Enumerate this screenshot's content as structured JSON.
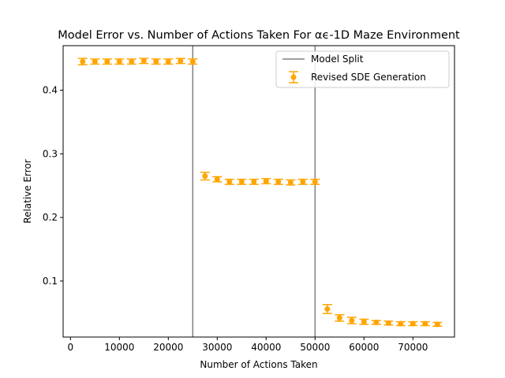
{
  "chart_data": {
    "type": "scatter",
    "title": "Model Error vs. Number of Actions Taken For αϵ-1D Maze Environment",
    "xlabel": "Number of Actions Taken",
    "ylabel": "Relative Error",
    "xlim": [
      -1500,
      78500
    ],
    "ylim": [
      0.012,
      0.47
    ],
    "xticks": [
      0,
      10000,
      20000,
      30000,
      40000,
      50000,
      60000,
      70000
    ],
    "xtick_labels": [
      "0",
      "10000",
      "20000",
      "30000",
      "40000",
      "50000",
      "60000",
      "70000"
    ],
    "yticks": [
      0.1,
      0.2,
      0.3,
      0.4
    ],
    "ytick_labels": [
      "0.1",
      "0.2",
      "0.3",
      "0.4"
    ],
    "grid": false,
    "legend_position": "top-right",
    "vlines": {
      "name": "Model Split",
      "x": [
        25000,
        50000
      ],
      "color": "#808080"
    },
    "series": [
      {
        "name": "Revised SDE Generation",
        "color": "#ffa500",
        "points": [
          {
            "x": 2500,
            "y": 0.445,
            "err": 0.005
          },
          {
            "x": 5000,
            "y": 0.445,
            "err": 0.004
          },
          {
            "x": 7500,
            "y": 0.445,
            "err": 0.004
          },
          {
            "x": 10000,
            "y": 0.445,
            "err": 0.004
          },
          {
            "x": 12500,
            "y": 0.445,
            "err": 0.004
          },
          {
            "x": 15000,
            "y": 0.446,
            "err": 0.004
          },
          {
            "x": 17500,
            "y": 0.445,
            "err": 0.004
          },
          {
            "x": 20000,
            "y": 0.445,
            "err": 0.004
          },
          {
            "x": 22500,
            "y": 0.446,
            "err": 0.004
          },
          {
            "x": 25000,
            "y": 0.445,
            "err": 0.004
          },
          {
            "x": 27500,
            "y": 0.265,
            "err": 0.006
          },
          {
            "x": 30000,
            "y": 0.26,
            "err": 0.004
          },
          {
            "x": 32500,
            "y": 0.256,
            "err": 0.004
          },
          {
            "x": 35000,
            "y": 0.256,
            "err": 0.004
          },
          {
            "x": 37500,
            "y": 0.256,
            "err": 0.004
          },
          {
            "x": 40000,
            "y": 0.257,
            "err": 0.004
          },
          {
            "x": 42500,
            "y": 0.256,
            "err": 0.004
          },
          {
            "x": 45000,
            "y": 0.255,
            "err": 0.004
          },
          {
            "x": 47500,
            "y": 0.256,
            "err": 0.004
          },
          {
            "x": 50000,
            "y": 0.256,
            "err": 0.004
          },
          {
            "x": 52500,
            "y": 0.056,
            "err": 0.007
          },
          {
            "x": 55000,
            "y": 0.042,
            "err": 0.005
          },
          {
            "x": 57500,
            "y": 0.038,
            "err": 0.005
          },
          {
            "x": 60000,
            "y": 0.036,
            "err": 0.004
          },
          {
            "x": 62500,
            "y": 0.035,
            "err": 0.003
          },
          {
            "x": 65000,
            "y": 0.034,
            "err": 0.003
          },
          {
            "x": 67500,
            "y": 0.033,
            "err": 0.003
          },
          {
            "x": 70000,
            "y": 0.033,
            "err": 0.003
          },
          {
            "x": 72500,
            "y": 0.033,
            "err": 0.003
          },
          {
            "x": 75000,
            "y": 0.032,
            "err": 0.003
          }
        ]
      }
    ]
  }
}
